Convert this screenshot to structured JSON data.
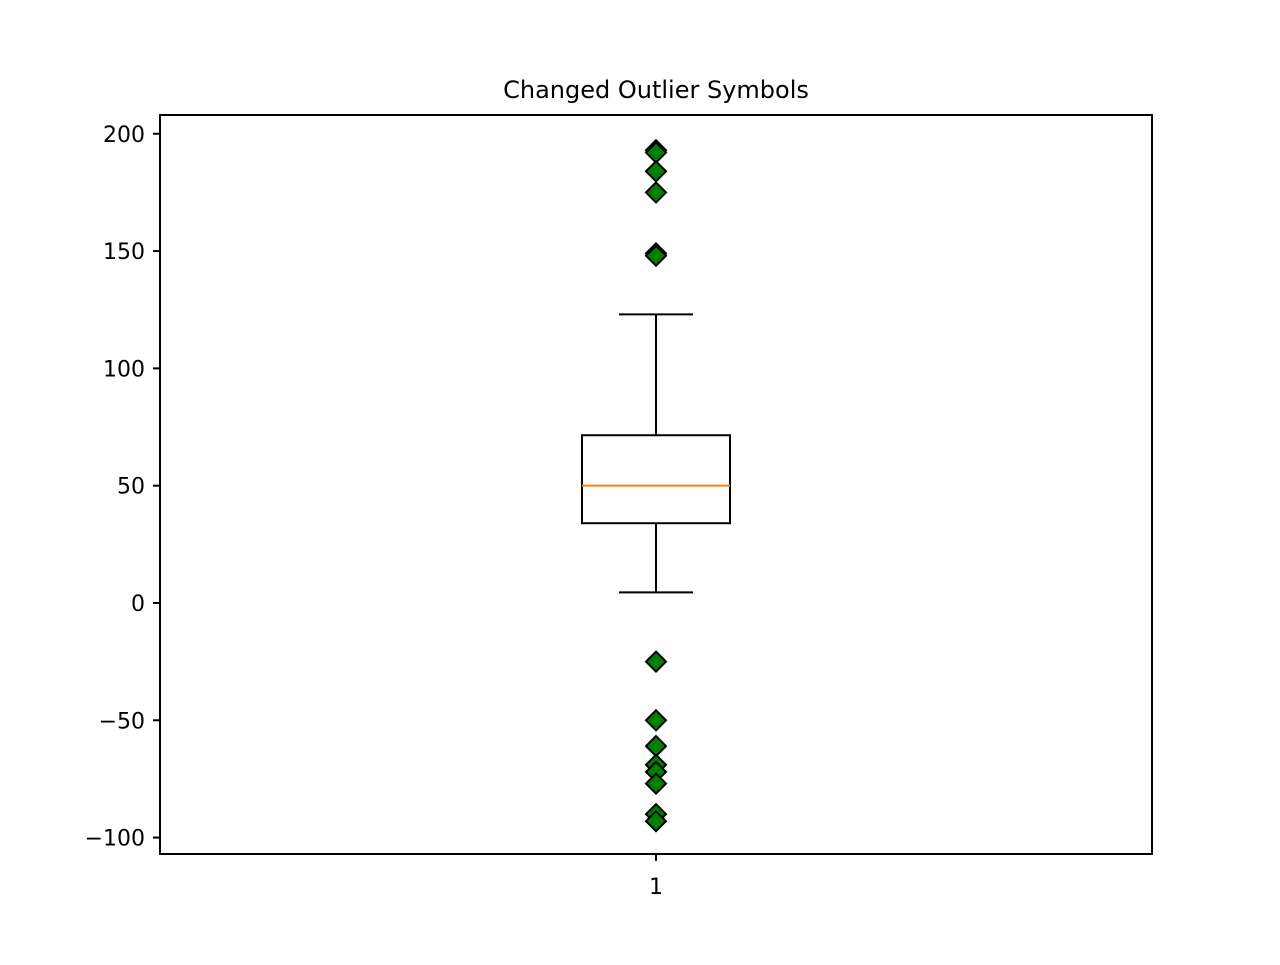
{
  "chart_data": {
    "type": "box",
    "title": "Changed Outlier Symbols",
    "xlabel": "",
    "ylabel": "",
    "categories": [
      "1"
    ],
    "ylim": [
      -107,
      208
    ],
    "yticks": [
      200,
      150,
      100,
      50,
      0,
      -50,
      -100
    ],
    "ytick_labels": [
      "200",
      "150",
      "100",
      "50",
      "0",
      "−50",
      "−100"
    ],
    "grid": false,
    "boxes": [
      {
        "category": "1",
        "whisker_low": 4.5,
        "q1": 34,
        "median": 50,
        "q3": 71.5,
        "whisker_high": 123,
        "outliers": [
          193,
          192,
          184,
          175,
          149,
          148,
          -25,
          -50,
          -61,
          -69,
          -72,
          -77,
          -90,
          -93
        ]
      }
    ],
    "outlier_marker": "diamond",
    "colors": {
      "outlier_fill": "#008000",
      "outlier_edge": "#000000",
      "median_line": "#ff7f0e",
      "box_edge": "#000000"
    }
  }
}
